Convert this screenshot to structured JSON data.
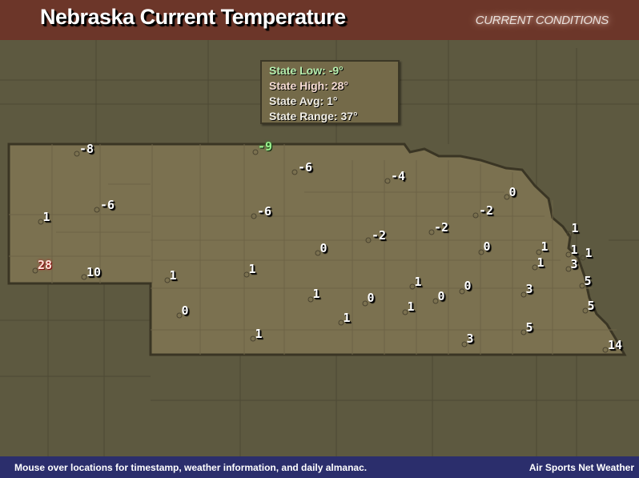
{
  "header": {
    "title": "Nebraska Current Temperature",
    "badge": "CURRENT CONDITIONS"
  },
  "stats": {
    "low": "State Low: -9°",
    "high": "State High: 28°",
    "avg": "State Avg: 1°",
    "range": "State Range: 37°"
  },
  "stations": [
    {
      "temp": "-8"
    },
    {
      "temp": "-9",
      "type": "low"
    },
    {
      "temp": "-6"
    },
    {
      "temp": "-4"
    },
    {
      "temp": "0"
    },
    {
      "temp": "-6"
    },
    {
      "temp": "1"
    },
    {
      "temp": "-6"
    },
    {
      "temp": "-2"
    },
    {
      "temp": "-2"
    },
    {
      "temp": "-2"
    },
    {
      "temp": "0"
    },
    {
      "temp": "0"
    },
    {
      "temp": "1"
    },
    {
      "temp": "1"
    },
    {
      "temp": "1"
    },
    {
      "temp": "1"
    },
    {
      "temp": "1"
    },
    {
      "temp": "3"
    },
    {
      "temp": "28",
      "type": "high"
    },
    {
      "temp": "10"
    },
    {
      "temp": "1"
    },
    {
      "temp": "1"
    },
    {
      "temp": "5"
    },
    {
      "temp": "1"
    },
    {
      "temp": "0"
    },
    {
      "temp": "3"
    },
    {
      "temp": "1"
    },
    {
      "temp": "0"
    },
    {
      "temp": "0"
    },
    {
      "temp": "1"
    },
    {
      "temp": "5"
    },
    {
      "temp": "0"
    },
    {
      "temp": "1"
    },
    {
      "temp": "5"
    },
    {
      "temp": "1"
    },
    {
      "temp": "3"
    },
    {
      "temp": "14"
    }
  ],
  "colors": {
    "state_fill": "#7b7150",
    "surround": "#5d5940",
    "header": "#6e3428",
    "footer": "#2b2e6c",
    "low": "#9af08e",
    "high": "#c03020"
  },
  "footer": {
    "hint": "Mouse over locations for timestamp, weather information, and daily almanac.",
    "brand": "Air Sports Net Weather"
  }
}
